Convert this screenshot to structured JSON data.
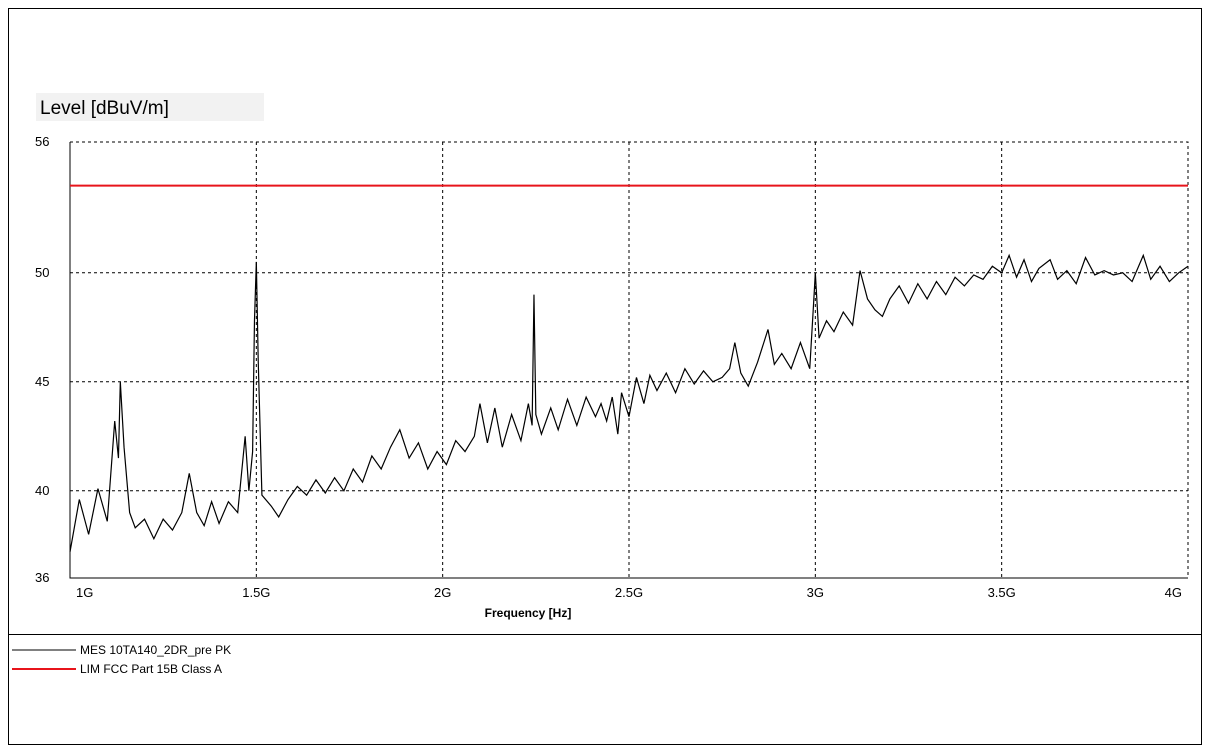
{
  "chart_data": {
    "type": "line",
    "ylabel": "Level [dBuV/m]",
    "xlabel": "Frequency [Hz]",
    "xlim": [
      1000000000,
      4000000000
    ],
    "ylim": [
      36,
      56
    ],
    "xticks": [
      {
        "value": 1000000000,
        "label": "1G"
      },
      {
        "value": 1500000000,
        "label": "1.5G"
      },
      {
        "value": 2000000000,
        "label": "2G"
      },
      {
        "value": 2500000000,
        "label": "2.5G"
      },
      {
        "value": 3000000000,
        "label": "3G"
      },
      {
        "value": 3500000000,
        "label": "3.5G"
      },
      {
        "value": 4000000000,
        "label": "4G"
      }
    ],
    "yticks": [
      36,
      40,
      45,
      50,
      56
    ],
    "grid": true,
    "series": [
      {
        "name": "MES  10TA140_2DR_pre PK",
        "color": "#000000",
        "x": [
          1000000000.0,
          1025000000.0,
          1050000000.0,
          1075000000.0,
          1100000000.0,
          1120000000.0,
          1130000000.0,
          1135000000.0,
          1145000000.0,
          1160000000.0,
          1175000000.0,
          1200000000.0,
          1225000000.0,
          1250000000.0,
          1275000000.0,
          1300000000.0,
          1320000000.0,
          1340000000.0,
          1360000000.0,
          1380000000.0,
          1400000000.0,
          1425000000.0,
          1450000000.0,
          1470000000.0,
          1480000000.0,
          1490000000.0,
          1495000000.0,
          1500000000.0,
          1505000000.0,
          1515000000.0,
          1540000000.0,
          1560000000.0,
          1585000000.0,
          1610000000.0,
          1635000000.0,
          1660000000.0,
          1685000000.0,
          1710000000.0,
          1735000000.0,
          1760000000.0,
          1785000000.0,
          1810000000.0,
          1835000000.0,
          1860000000.0,
          1885000000.0,
          1910000000.0,
          1935000000.0,
          1960000000.0,
          1985000000.0,
          2010000000.0,
          2035000000.0,
          2060000000.0,
          2085000000.0,
          2100000000.0,
          2120000000.0,
          2140000000.0,
          2160000000.0,
          2185000000.0,
          2210000000.0,
          2230000000.0,
          2240000000.0,
          2245000000.0,
          2250000000.0,
          2265000000.0,
          2290000000.0,
          2310000000.0,
          2335000000.0,
          2360000000.0,
          2385000000.0,
          2410000000.0,
          2425000000.0,
          2440000000.0,
          2455000000.0,
          2470000000.0,
          2480000000.0,
          2500000000.0,
          2520000000.0,
          2540000000.0,
          2556000000.0,
          2575000000.0,
          2600000000.0,
          2625000000.0,
          2650000000.0,
          2675000000.0,
          2700000000.0,
          2725000000.0,
          2750000000.0,
          2770000000.0,
          2784000000.0,
          2800000000.0,
          2820000000.0,
          2845000000.0,
          2873000000.0,
          2890000000.0,
          2910000000.0,
          2935000000.0,
          2960000000.0,
          2985000000.0,
          2995000000.0,
          3000000000.0,
          3010000000.0,
          3030000000.0,
          3050000000.0,
          3075000000.0,
          3100000000.0,
          3120000000.0,
          3140000000.0,
          3160000000.0,
          3180000000.0,
          3200000000.0,
          3225000000.0,
          3250000000.0,
          3275000000.0,
          3300000000.0,
          3325000000.0,
          3350000000.0,
          3375000000.0,
          3400000000.0,
          3425000000.0,
          3450000000.0,
          3475000000.0,
          3500000000.0,
          3520000000.0,
          3540000000.0,
          3560000000.0,
          3580000000.0,
          3600000000.0,
          3630000000.0,
          3650000000.0,
          3675000000.0,
          3700000000.0,
          3725000000.0,
          3750000000.0,
          3775000000.0,
          3800000000.0,
          3825000000.0,
          3850000000.0,
          3880000000.0,
          3900000000.0,
          3925000000.0,
          3950000000.0,
          3975000000.0,
          4000000000.0
        ],
        "values": [
          37.2,
          39.6,
          38.0,
          40.1,
          38.6,
          43.2,
          41.5,
          45.0,
          42.0,
          39.0,
          38.3,
          38.7,
          37.8,
          38.7,
          38.2,
          39.0,
          40.8,
          39.0,
          38.4,
          39.5,
          38.5,
          39.5,
          39.0,
          42.5,
          40.0,
          41.8,
          47.8,
          50.5,
          46.0,
          39.8,
          39.3,
          38.8,
          39.6,
          40.2,
          39.8,
          40.5,
          39.9,
          40.6,
          40.0,
          41.0,
          40.4,
          41.6,
          41.0,
          42.0,
          42.8,
          41.5,
          42.2,
          41.0,
          41.8,
          41.2,
          42.3,
          41.8,
          42.5,
          44.0,
          42.2,
          43.8,
          42.0,
          43.5,
          42.3,
          44.0,
          43.0,
          49.0,
          43.5,
          42.6,
          43.8,
          42.8,
          44.2,
          43.0,
          44.3,
          43.4,
          44.0,
          43.2,
          44.3,
          42.6,
          44.5,
          43.4,
          45.2,
          44.0,
          45.3,
          44.6,
          45.4,
          44.5,
          45.6,
          44.9,
          45.5,
          45.0,
          45.2,
          45.6,
          46.8,
          45.4,
          44.8,
          45.9,
          47.4,
          45.8,
          46.3,
          45.6,
          46.8,
          45.6,
          48.5,
          50.0,
          47.0,
          47.8,
          47.3,
          48.2,
          47.6,
          50.1,
          48.8,
          48.3,
          48.0,
          48.8,
          49.4,
          48.6,
          49.5,
          48.8,
          49.6,
          49.0,
          49.8,
          49.4,
          49.9,
          49.7,
          50.3,
          50.0,
          50.8,
          49.8,
          50.6,
          49.6,
          50.2,
          50.6,
          49.7,
          50.1,
          49.5,
          50.7,
          49.9,
          50.1,
          49.9,
          50.0,
          49.6,
          50.8,
          49.7,
          50.3,
          49.6,
          50.0,
          50.3
        ]
      },
      {
        "name": "LIM  FCC Part 15B Class A",
        "color": "#e8141b",
        "x": [
          1000000000,
          4000000000
        ],
        "values": [
          54,
          54
        ]
      }
    ]
  }
}
